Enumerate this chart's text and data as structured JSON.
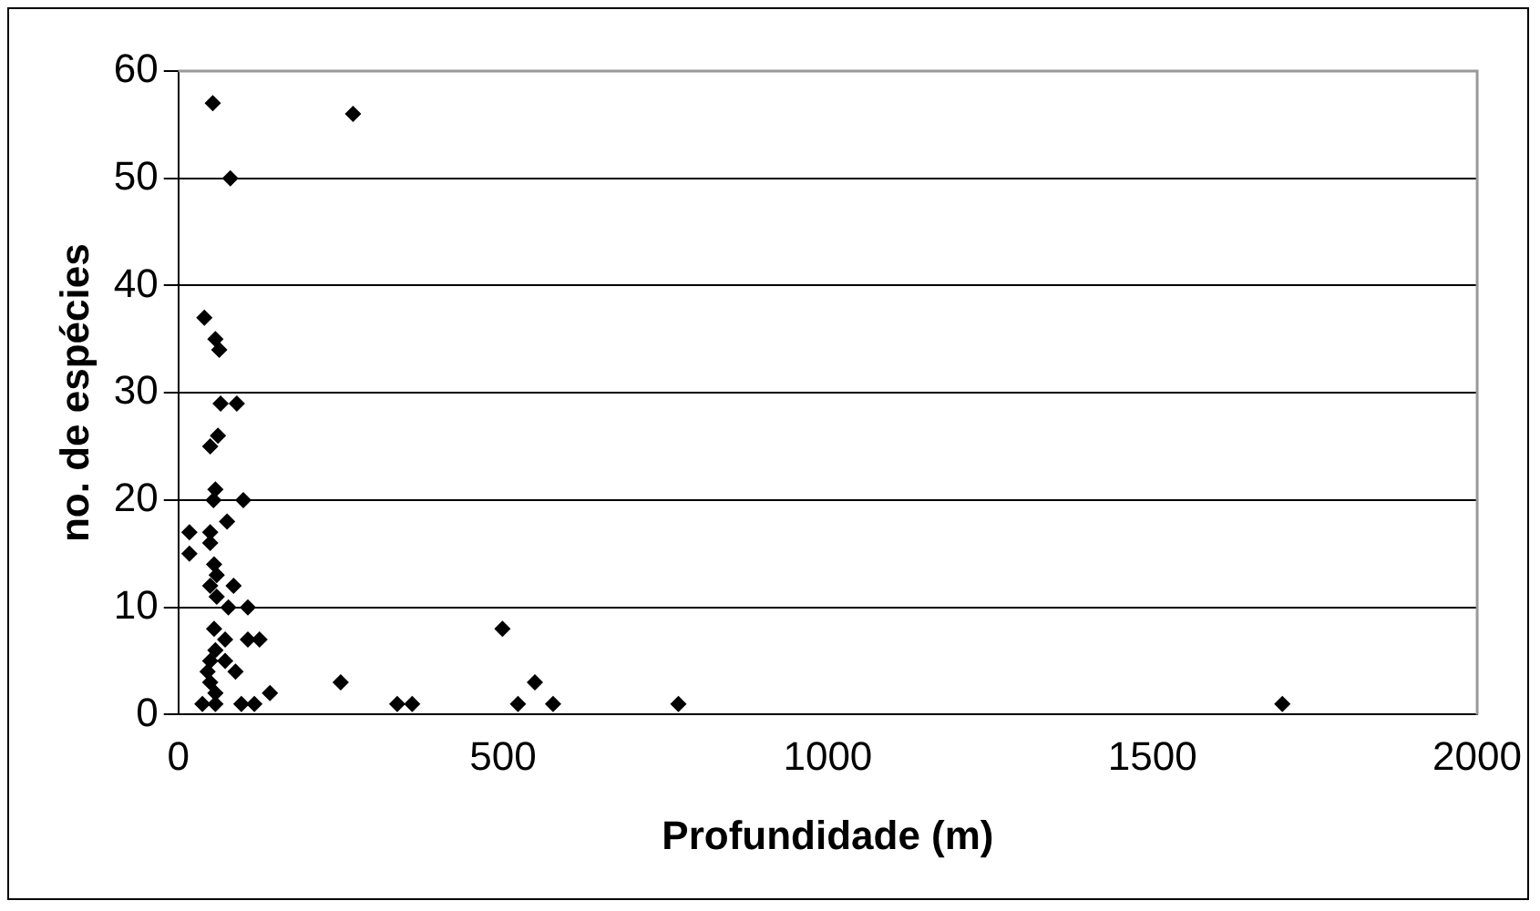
{
  "chart_data": {
    "type": "scatter",
    "xlabel": "Profundidade (m)",
    "ylabel": "no. de espécies",
    "x": [
      53,
      269,
      80,
      40,
      57,
      63,
      65,
      90,
      49,
      61,
      57,
      54,
      100,
      75,
      17,
      49,
      49,
      17,
      55,
      59,
      49,
      85,
      59,
      77,
      107,
      55,
      499,
      72,
      107,
      125,
      57,
      49,
      72,
      88,
      45,
      49,
      57,
      141,
      250,
      37,
      57,
      97,
      117,
      337,
      360,
      523,
      549,
      577,
      770,
      1700
    ],
    "values": [
      57,
      56,
      50,
      37,
      35,
      34,
      29,
      29,
      25,
      26,
      21,
      20,
      20,
      18,
      17,
      17,
      16,
      15,
      14,
      13,
      12,
      12,
      11,
      10,
      10,
      8,
      8,
      7,
      7,
      7,
      6,
      5,
      5,
      4,
      4,
      3,
      2,
      2,
      3,
      1,
      1,
      1,
      1,
      1,
      1,
      1,
      3,
      1,
      1,
      1
    ],
    "color": "#000000",
    "marker": "diamond",
    "xlim": [
      0,
      2000
    ],
    "xticks": [
      0,
      500,
      1000,
      1500,
      2000
    ],
    "ylim": [
      0,
      60
    ],
    "yticks": [
      0,
      10,
      20,
      30,
      40,
      50,
      60
    ],
    "grid": "y",
    "legend": false
  }
}
